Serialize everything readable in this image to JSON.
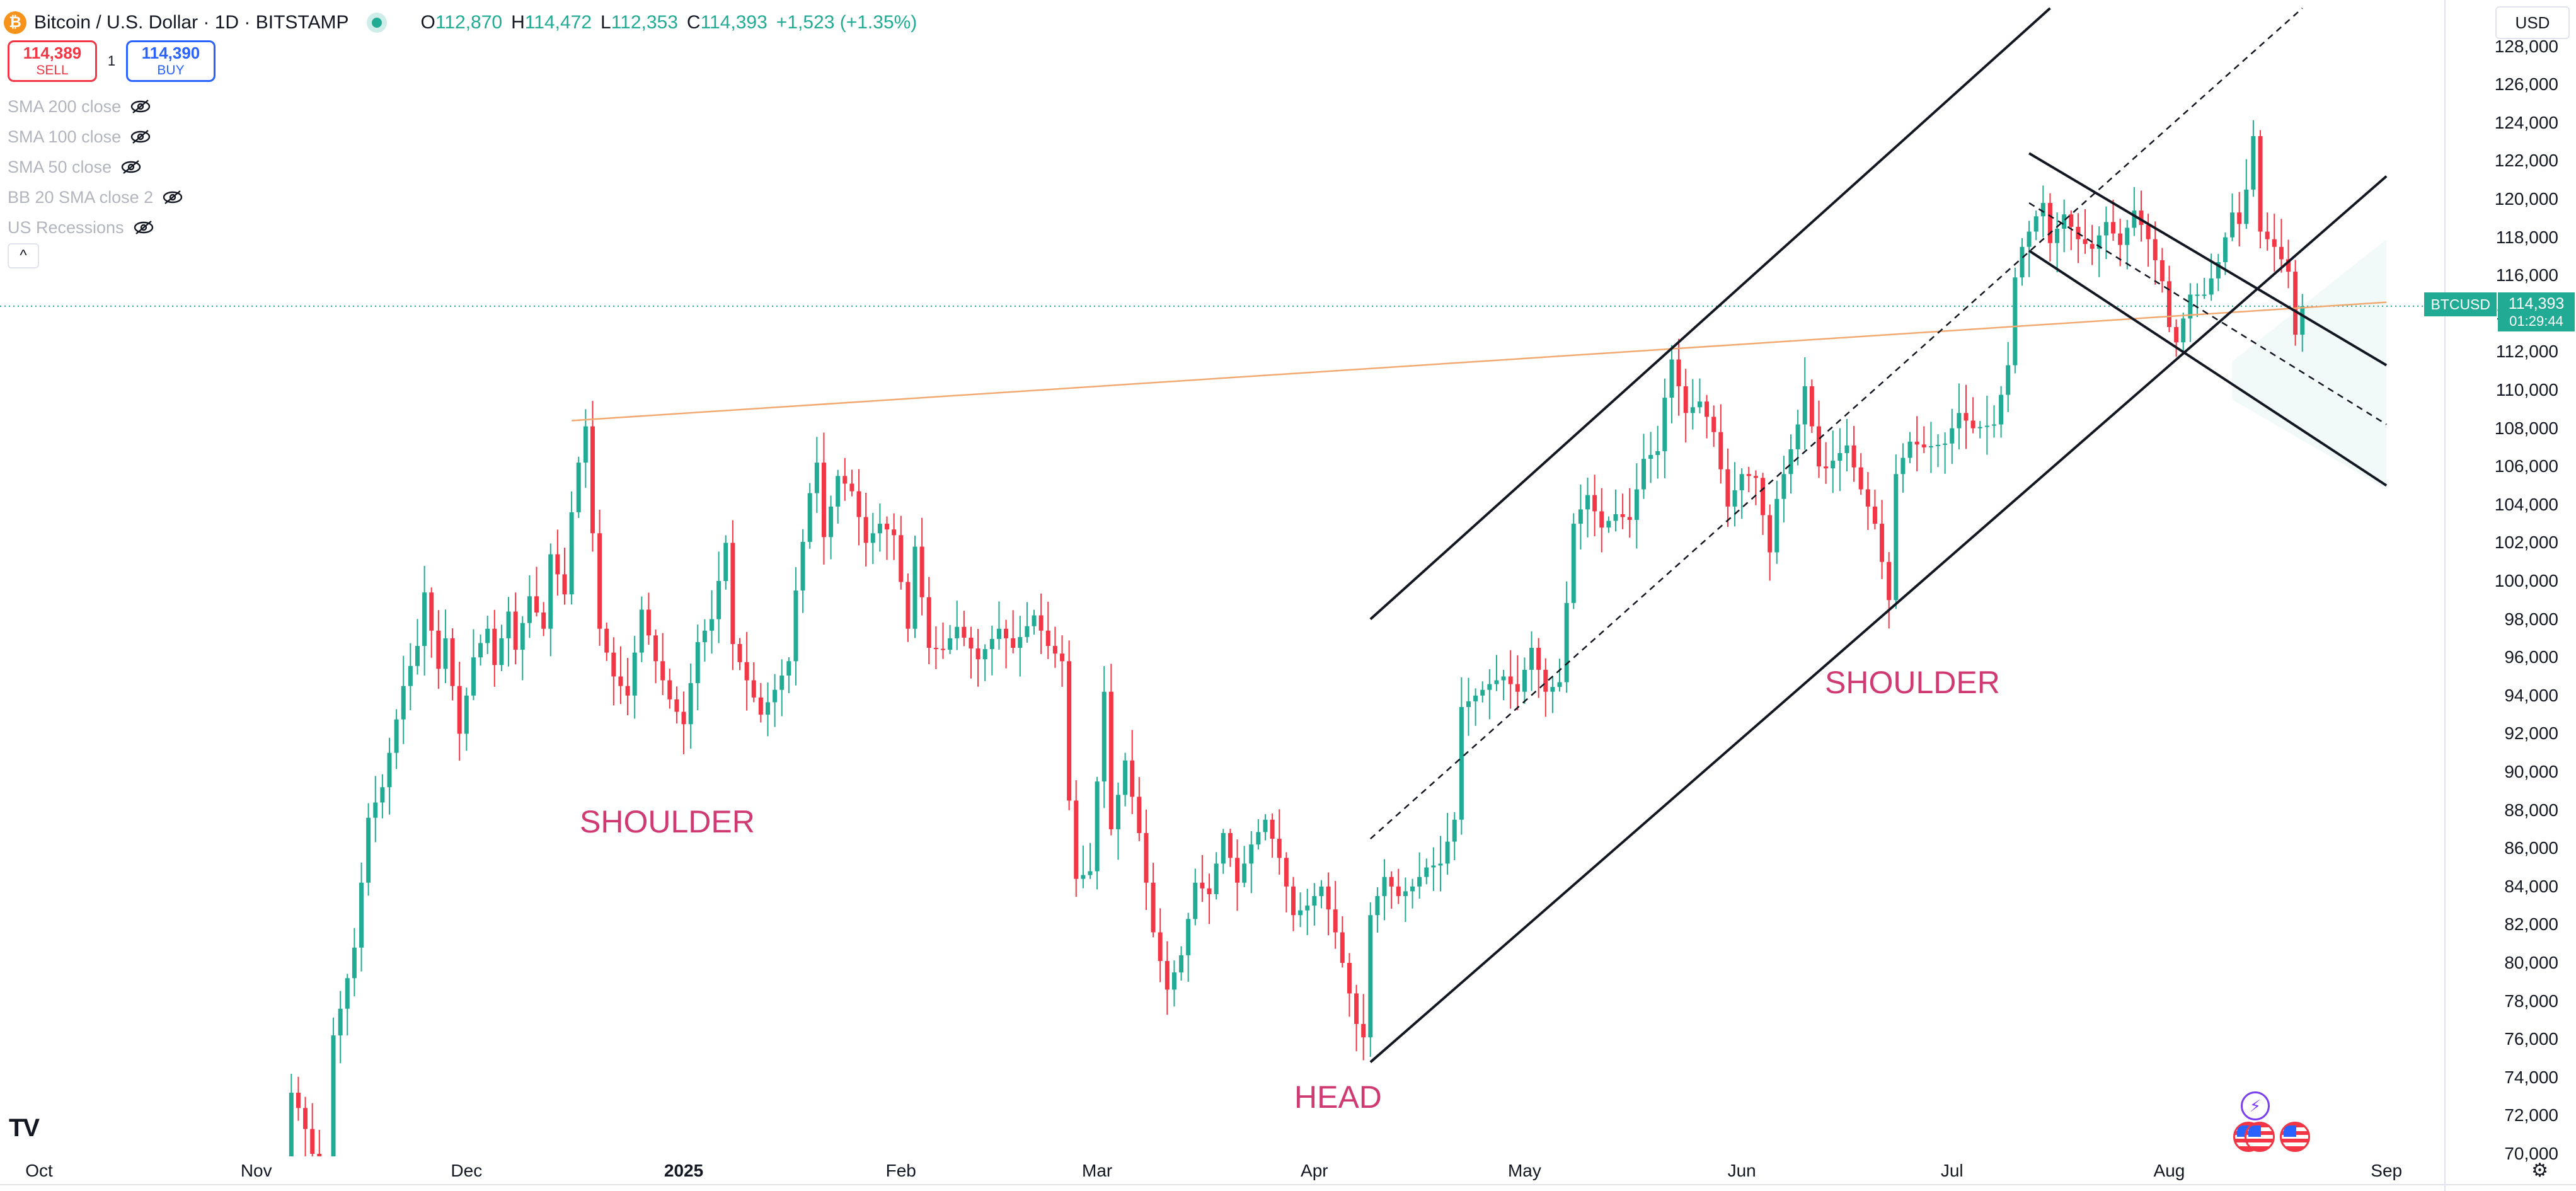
{
  "header": {
    "coin_icon": "bitcoin-icon",
    "coin_glyph": "₿",
    "title": "Bitcoin / U.S. Dollar · 1D · BITSTAMP",
    "market_status": "open",
    "open_label": "O",
    "open_value": "112,870",
    "high_label": "H",
    "high_value": "114,472",
    "low_label": "L",
    "low_value": "112,353",
    "close_label": "C",
    "close_value": "114,393",
    "change": "+1,523 (+1.35%)"
  },
  "trade": {
    "sell_price": "114,389",
    "sell_label": "SELL",
    "quantity": "1",
    "buy_price": "114,390",
    "buy_label": "BUY"
  },
  "indicators": [
    {
      "label": "SMA 200 close",
      "icon": "eye-crossed-icon"
    },
    {
      "label": "SMA 100 close",
      "icon": "eye-crossed-icon"
    },
    {
      "label": "SMA 50 close",
      "icon": "eye-crossed-icon"
    },
    {
      "label": "BB 20 SMA close 2",
      "icon": "eye-crossed-icon"
    },
    {
      "label": "US Recessions",
      "icon": "eye-crossed-icon"
    }
  ],
  "collapse_glyph": "^",
  "currency": "USD",
  "price_tag": {
    "symbol": "BTCUSD",
    "last": "114,393",
    "countdown": "01:29:44"
  },
  "annotations": {
    "left_shoulder": "SHOULDER",
    "head": "HEAD",
    "right_shoulder": "SHOULDER"
  },
  "gear_glyph": "⚙",
  "logo_text": "TV",
  "colors": {
    "up": "#22ab94",
    "down": "#f23645",
    "neckline": "#f2a971",
    "channel": "#131722",
    "label": "#d03a72"
  },
  "chart_data": {
    "type": "candlestick",
    "symbol": "BTCUSD",
    "timeframe": "1D",
    "x_ticks": [
      "Oct",
      "Nov",
      "Dec",
      "2025",
      "Feb",
      "Mar",
      "Apr",
      "May",
      "Jun",
      "Jul",
      "Aug",
      "Sep"
    ],
    "y_ticks": [
      "70,000",
      "72,000",
      "74,000",
      "76,000",
      "78,000",
      "80,000",
      "82,000",
      "84,000",
      "86,000",
      "88,000",
      "90,000",
      "92,000",
      "94,000",
      "96,000",
      "98,000",
      "100,000",
      "102,000",
      "104,000",
      "106,000",
      "108,000",
      "110,000",
      "112,000",
      "114,000",
      "116,000",
      "118,000",
      "120,000",
      "122,000",
      "124,000",
      "126,000",
      "128,000"
    ],
    "ylim": [
      70000,
      130000
    ],
    "last_price": 114393,
    "x_start": "2024-10-01",
    "close_path": [
      [
        "2024-11-04",
        69300
      ],
      [
        "2024-11-05",
        69500
      ],
      [
        "2024-11-06",
        73200
      ],
      [
        "2024-11-07",
        72400
      ],
      [
        "2024-11-08",
        71300
      ],
      [
        "2024-11-09",
        70000
      ],
      [
        "2024-11-11",
        69400
      ],
      [
        "2024-11-12",
        76200
      ],
      [
        "2024-11-13",
        77600
      ],
      [
        "2024-11-15",
        80800
      ],
      [
        "2024-11-17",
        87600
      ],
      [
        "2024-11-19",
        89200
      ],
      [
        "2024-11-20",
        91000
      ],
      [
        "2024-11-22",
        94500
      ],
      [
        "2024-11-24",
        96600
      ],
      [
        "2024-11-25",
        99400
      ],
      [
        "2024-11-27",
        95400
      ],
      [
        "2024-11-28",
        97000
      ],
      [
        "2024-11-30",
        92000
      ],
      [
        "2024-12-02",
        96000
      ],
      [
        "2024-12-04",
        97500
      ],
      [
        "2024-12-05",
        95600
      ],
      [
        "2024-12-07",
        98400
      ],
      [
        "2024-12-08",
        96400
      ],
      [
        "2024-12-10",
        99200
      ],
      [
        "2024-12-12",
        97500
      ],
      [
        "2024-12-13",
        101400
      ],
      [
        "2024-12-15",
        99300
      ],
      [
        "2024-12-16",
        103600
      ],
      [
        "2024-12-17",
        106200
      ],
      [
        "2024-12-18",
        108100
      ],
      [
        "2024-12-19",
        102500
      ],
      [
        "2024-12-20",
        97500
      ],
      [
        "2024-12-22",
        95000
      ],
      [
        "2024-12-24",
        94000
      ],
      [
        "2024-12-26",
        98500
      ],
      [
        "2024-12-28",
        95800
      ],
      [
        "2024-12-30",
        93800
      ],
      [
        "2025-01-01",
        92500
      ],
      [
        "2025-01-03",
        96800
      ],
      [
        "2025-01-05",
        98000
      ],
      [
        "2025-01-07",
        102000
      ],
      [
        "2025-01-08",
        96700
      ],
      [
        "2025-01-10",
        94800
      ],
      [
        "2025-01-12",
        93000
      ],
      [
        "2025-01-14",
        94300
      ],
      [
        "2025-01-16",
        95800
      ],
      [
        "2025-01-17",
        99500
      ],
      [
        "2025-01-19",
        104600
      ],
      [
        "2025-01-20",
        106200
      ],
      [
        "2025-01-21",
        102300
      ],
      [
        "2025-01-23",
        105500
      ],
      [
        "2025-01-25",
        104700
      ],
      [
        "2025-01-27",
        102000
      ],
      [
        "2025-01-29",
        103000
      ],
      [
        "2025-01-31",
        102400
      ],
      [
        "2025-02-02",
        97500
      ],
      [
        "2025-02-03",
        101800
      ],
      [
        "2025-02-05",
        96500
      ],
      [
        "2025-02-07",
        96400
      ],
      [
        "2025-02-09",
        97600
      ],
      [
        "2025-02-12",
        95900
      ],
      [
        "2025-02-15",
        97500
      ],
      [
        "2025-02-17",
        96500
      ],
      [
        "2025-02-20",
        98200
      ],
      [
        "2025-02-22",
        96600
      ],
      [
        "2025-02-24",
        95800
      ],
      [
        "2025-02-25",
        88500
      ],
      [
        "2025-02-26",
        84400
      ],
      [
        "2025-02-28",
        84800
      ],
      [
        "2025-03-02",
        94200
      ],
      [
        "2025-03-03",
        87000
      ],
      [
        "2025-03-05",
        90600
      ],
      [
        "2025-03-07",
        86800
      ],
      [
        "2025-03-09",
        81600
      ],
      [
        "2025-03-11",
        78600
      ],
      [
        "2025-03-13",
        80400
      ],
      [
        "2025-03-15",
        84200
      ],
      [
        "2025-03-17",
        83600
      ],
      [
        "2025-03-19",
        86800
      ],
      [
        "2025-03-21",
        84200
      ],
      [
        "2025-03-23",
        86200
      ],
      [
        "2025-03-25",
        87500
      ],
      [
        "2025-03-27",
        85500
      ],
      [
        "2025-03-29",
        82500
      ],
      [
        "2025-03-31",
        83000
      ],
      [
        "2025-04-02",
        84000
      ],
      [
        "2025-04-04",
        81600
      ],
      [
        "2025-04-06",
        78400
      ],
      [
        "2025-04-07",
        76800
      ],
      [
        "2025-04-08",
        76100
      ],
      [
        "2025-04-09",
        82500
      ],
      [
        "2025-04-11",
        84500
      ],
      [
        "2025-04-13",
        83500
      ],
      [
        "2025-04-15",
        84000
      ],
      [
        "2025-04-17",
        85000
      ],
      [
        "2025-04-19",
        85200
      ],
      [
        "2025-04-21",
        87500
      ],
      [
        "2025-04-22",
        93400
      ],
      [
        "2025-04-24",
        94000
      ],
      [
        "2025-04-26",
        94600
      ],
      [
        "2025-04-28",
        95000
      ],
      [
        "2025-04-30",
        94200
      ],
      [
        "2025-05-02",
        96500
      ],
      [
        "2025-05-04",
        94200
      ],
      [
        "2025-05-06",
        94700
      ],
      [
        "2025-05-08",
        103000
      ],
      [
        "2025-05-10",
        104500
      ],
      [
        "2025-05-12",
        102800
      ],
      [
        "2025-05-14",
        103500
      ],
      [
        "2025-05-16",
        103200
      ],
      [
        "2025-05-18",
        106400
      ],
      [
        "2025-05-20",
        106800
      ],
      [
        "2025-05-21",
        109600
      ],
      [
        "2025-05-22",
        111600
      ],
      [
        "2025-05-24",
        108800
      ],
      [
        "2025-05-26",
        109400
      ],
      [
        "2025-05-28",
        107800
      ],
      [
        "2025-05-30",
        103900
      ],
      [
        "2025-06-01",
        105600
      ],
      [
        "2025-06-03",
        105400
      ],
      [
        "2025-06-05",
        101500
      ],
      [
        "2025-06-06",
        104300
      ],
      [
        "2025-06-09",
        108200
      ],
      [
        "2025-06-10",
        110200
      ],
      [
        "2025-06-12",
        106000
      ],
      [
        "2025-06-13",
        105900
      ],
      [
        "2025-06-16",
        107100
      ],
      [
        "2025-06-18",
        104800
      ],
      [
        "2025-06-20",
        103000
      ],
      [
        "2025-06-22",
        99000
      ],
      [
        "2025-06-23",
        105600
      ],
      [
        "2025-06-25",
        107300
      ],
      [
        "2025-06-27",
        107000
      ],
      [
        "2025-06-30",
        107200
      ],
      [
        "2025-07-02",
        108800
      ],
      [
        "2025-07-04",
        108000
      ],
      [
        "2025-07-07",
        108200
      ],
      [
        "2025-07-09",
        111300
      ],
      [
        "2025-07-10",
        115900
      ],
      [
        "2025-07-11",
        117500
      ],
      [
        "2025-07-13",
        119100
      ],
      [
        "2025-07-14",
        119800
      ],
      [
        "2025-07-15",
        117700
      ],
      [
        "2025-07-17",
        119200
      ],
      [
        "2025-07-19",
        117900
      ],
      [
        "2025-07-21",
        117400
      ],
      [
        "2025-07-23",
        118800
      ],
      [
        "2025-07-25",
        117600
      ],
      [
        "2025-07-27",
        119400
      ],
      [
        "2025-07-29",
        117900
      ],
      [
        "2025-07-31",
        115700
      ],
      [
        "2025-08-01",
        113300
      ],
      [
        "2025-08-02",
        112500
      ],
      [
        "2025-08-04",
        115000
      ],
      [
        "2025-08-06",
        115000
      ],
      [
        "2025-08-08",
        116700
      ],
      [
        "2025-08-10",
        119300
      ],
      [
        "2025-08-11",
        118700
      ],
      [
        "2025-08-12",
        120500
      ],
      [
        "2025-08-13",
        123300
      ],
      [
        "2025-08-14",
        118300
      ],
      [
        "2025-08-16",
        117500
      ],
      [
        "2025-08-18",
        116200
      ],
      [
        "2025-08-19",
        112900
      ],
      [
        "2025-08-20",
        114393
      ]
    ]
  }
}
